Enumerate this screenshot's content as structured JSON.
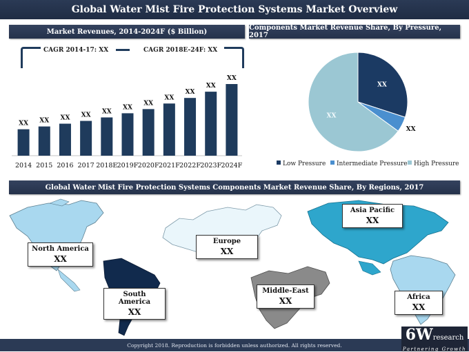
{
  "header": {
    "title": "Global Water Mist Fire Protection Systems Market Overview"
  },
  "revenues": {
    "title": "Market Revenues, 2014-2024F ($ Billion)",
    "cagr_left": "CAGR 2014-17: XX",
    "cagr_right": "CAGR 2018E-24F: XX"
  },
  "components": {
    "title": "Components Market Revenue Share, By Pressure, 2017"
  },
  "regions": {
    "title": "Global Water Mist Fire Protection Systems Components Market Revenue Share, By Regions, 2017",
    "labels": [
      {
        "name": "North America",
        "value": "XX"
      },
      {
        "name": "South America",
        "value": "XX"
      },
      {
        "name": "Europe",
        "value": "XX"
      },
      {
        "name": "Middle-East",
        "value": "XX"
      },
      {
        "name": "Asia Pacific",
        "value": "XX"
      },
      {
        "name": "Africa",
        "value": "XX"
      }
    ]
  },
  "footer": {
    "copyright": "Copyright 2018. Reproduction is forbidden unless authorized. All rights reserved."
  },
  "logo": {
    "main": "6W",
    "sub": "research",
    "tagline": "Partnering Growth"
  },
  "colors": {
    "bar": "#1f3b5c",
    "low_pressure": "#1b3a63",
    "intermediate_pressure": "#4a8fcf",
    "high_pressure": "#9bc7d3",
    "header_bg": "#2b3a55"
  },
  "chart_data": [
    {
      "type": "bar",
      "title": "Market Revenues, 2014-2024F ($ Billion)",
      "categories": [
        "2014",
        "2015",
        "2016",
        "2017",
        "2018E",
        "2019F",
        "2020F",
        "2021F",
        "2022F",
        "2023F",
        "2024F"
      ],
      "values": [
        38,
        42,
        46,
        50,
        55,
        61,
        67,
        75,
        83,
        92,
        103
      ],
      "data_labels": [
        "XX",
        "XX",
        "XX",
        "XX",
        "XX",
        "XX",
        "XX",
        "XX",
        "XX",
        "XX",
        "XX"
      ],
      "grid": false
    },
    {
      "type": "pie",
      "title": "Components Market Revenue Share, By Pressure, 2017",
      "series": [
        {
          "name": "Low Pressure",
          "value": 30,
          "label": "XX"
        },
        {
          "name": "Intermediate Pressure",
          "value": 5,
          "label": "XX"
        },
        {
          "name": "High Pressure",
          "value": 65,
          "label": "XX"
        }
      ],
      "legend": "bottom"
    }
  ]
}
